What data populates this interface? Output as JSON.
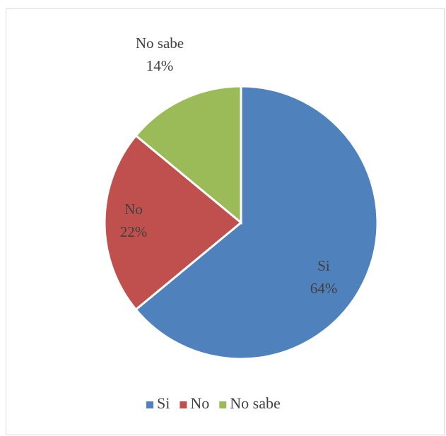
{
  "chart_data": {
    "type": "pie",
    "categories": [
      "Si",
      "No",
      "No sabe"
    ],
    "values": [
      64,
      22,
      14
    ],
    "value_labels": [
      "64%",
      "22%",
      "14%"
    ],
    "colors": [
      "#4f81bd",
      "#c0504d",
      "#9bbb59"
    ],
    "legend": "bottom"
  }
}
